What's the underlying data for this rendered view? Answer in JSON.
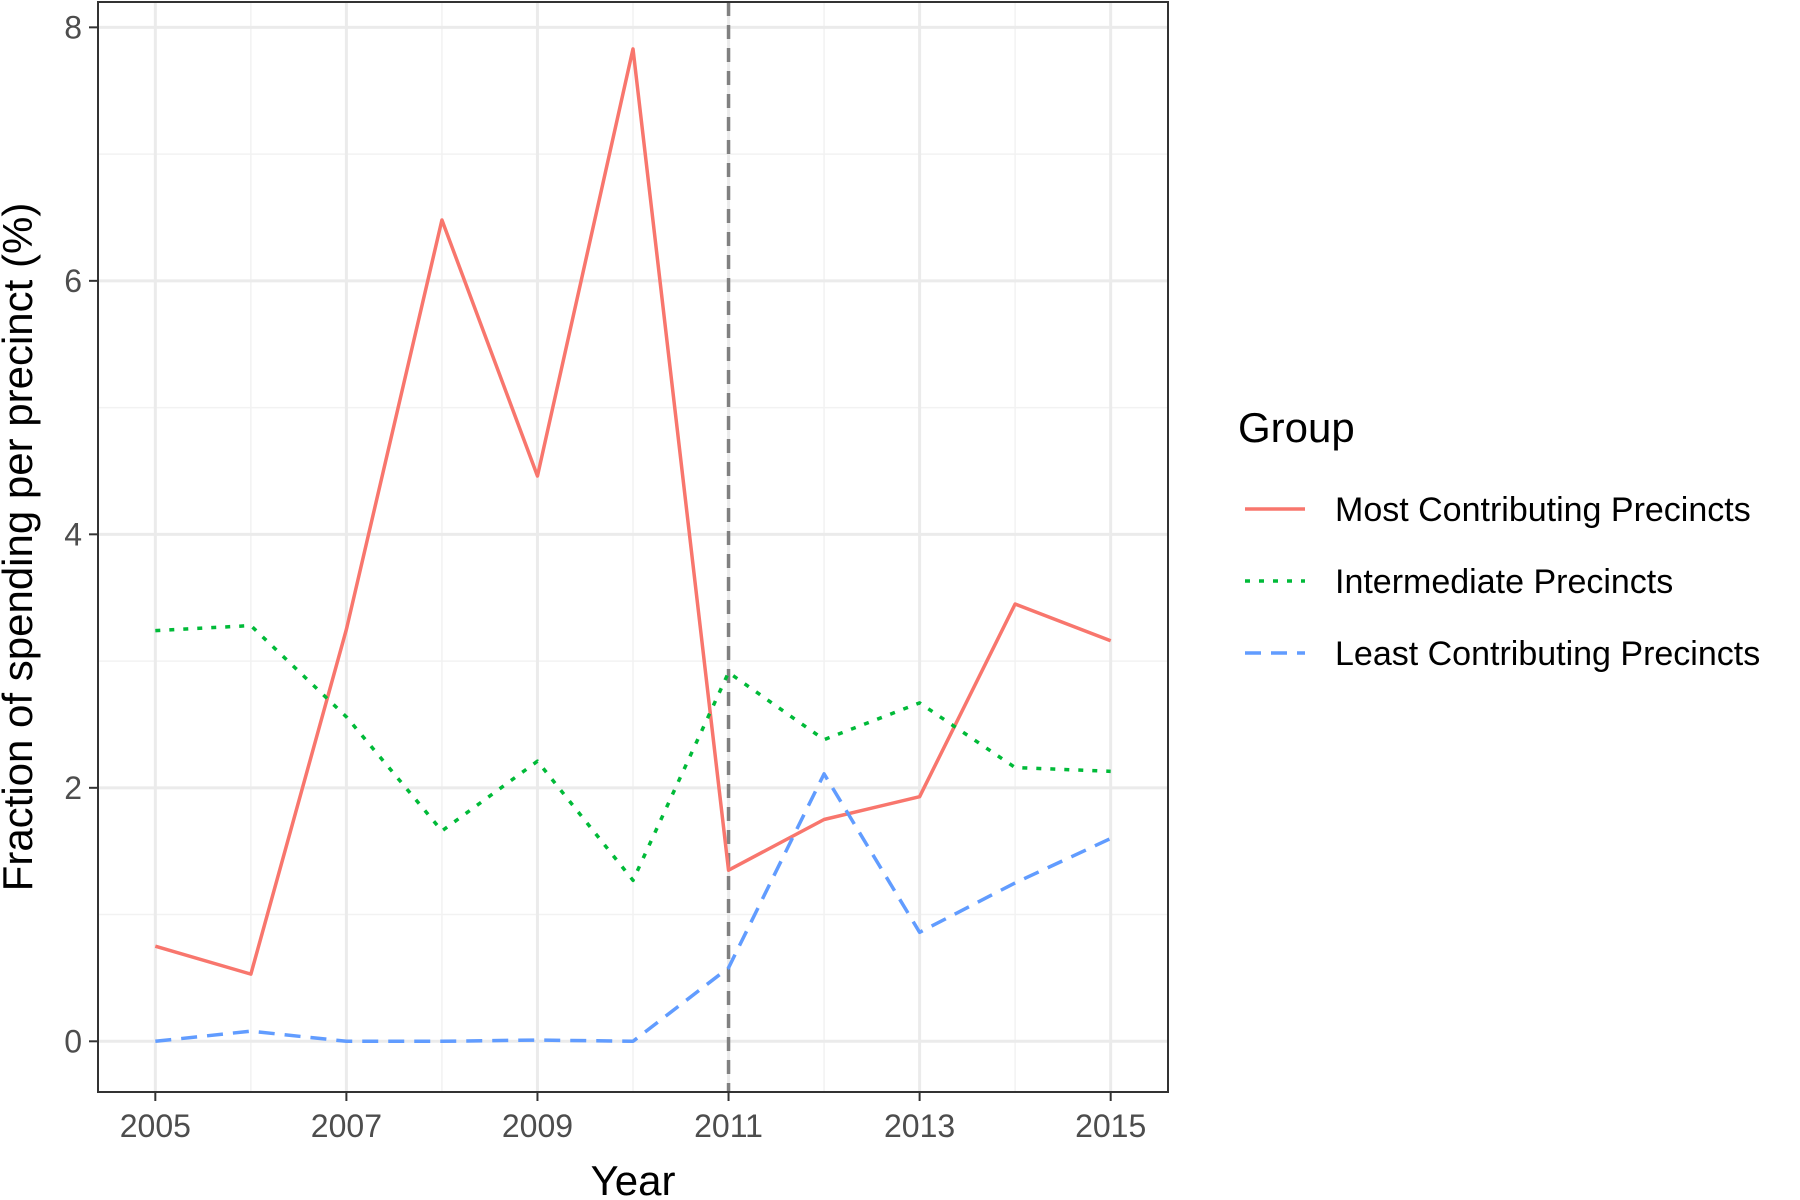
{
  "chart_data": {
    "type": "line",
    "xlabel": "Year",
    "ylabel": "Fraction of spending per precinct (%)",
    "xlim": [
      2004.4,
      2015.6
    ],
    "ylim": [
      -0.4,
      8.2
    ],
    "x": [
      2005,
      2006,
      2007,
      2008,
      2009,
      2010,
      2011,
      2012,
      2013,
      2014,
      2015
    ],
    "x_ticks": [
      2005,
      2007,
      2009,
      2011,
      2013,
      2015
    ],
    "x_tick_labels": [
      "2005",
      "2007",
      "2009",
      "2011",
      "2013",
      "2015"
    ],
    "y_ticks": [
      0,
      2,
      4,
      6,
      8
    ],
    "y_tick_labels": [
      "0",
      "2",
      "4",
      "6",
      "8"
    ],
    "y_minor_ticks": [
      1,
      3,
      5,
      7
    ],
    "x_minor_ticks": [
      2006,
      2008,
      2010,
      2012,
      2014
    ],
    "grid": true,
    "vline": {
      "x": 2011,
      "style": "dashed",
      "color": "#808080"
    },
    "legend": {
      "title": "Group",
      "placement": "right"
    },
    "series": [
      {
        "name": "Most Contributing Precincts",
        "color": "#F8766D",
        "dash": "solid",
        "values": [
          0.75,
          0.53,
          3.25,
          6.48,
          4.46,
          7.83,
          1.35,
          1.75,
          1.93,
          3.45,
          3.16
        ]
      },
      {
        "name": "Intermediate Precincts",
        "color": "#00BA38",
        "dash": "dotted",
        "values": [
          3.24,
          3.28,
          2.56,
          1.66,
          2.21,
          1.27,
          2.91,
          2.38,
          2.67,
          2.16,
          2.13
        ]
      },
      {
        "name": "Least Contributing Precincts",
        "color": "#619CFF",
        "dash": "dashed",
        "values": [
          0.0,
          0.08,
          0.0,
          0.0,
          0.01,
          0.0,
          0.58,
          2.11,
          0.86,
          1.25,
          1.6
        ]
      }
    ]
  }
}
